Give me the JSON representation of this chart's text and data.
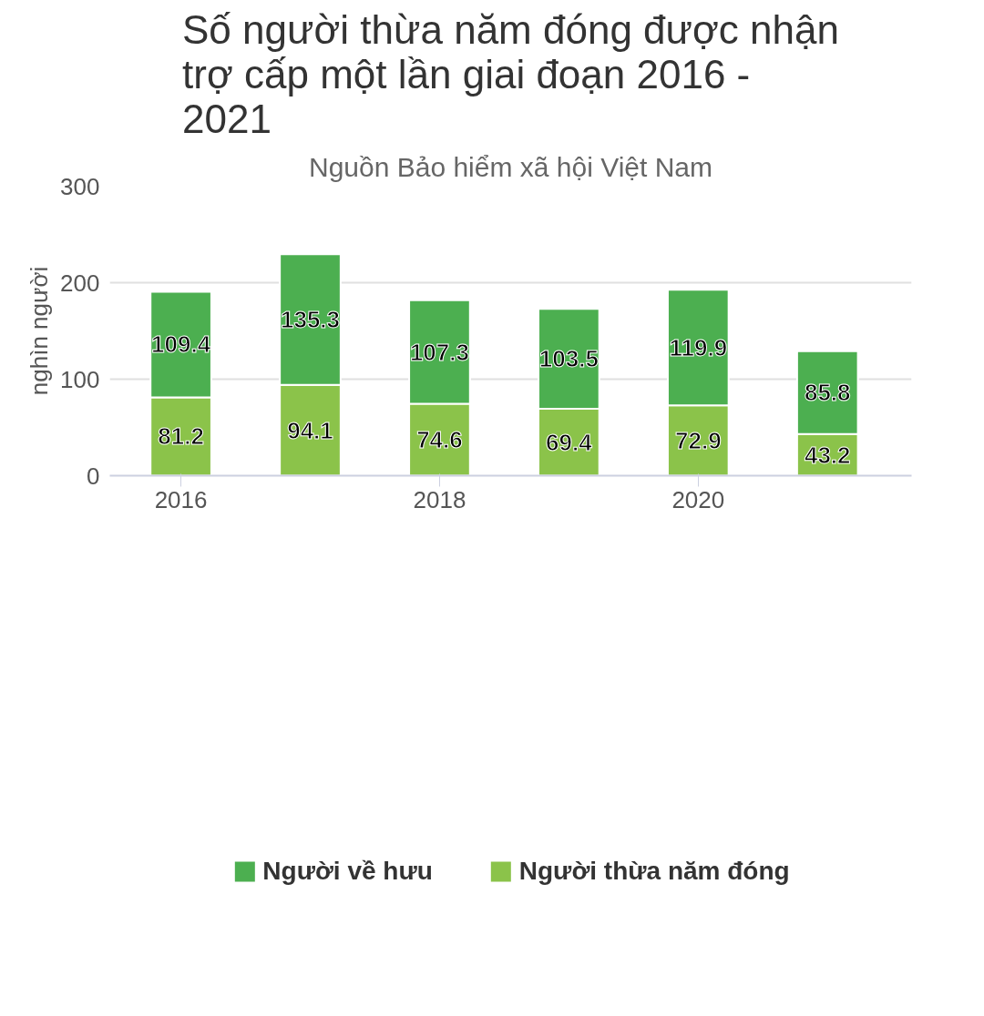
{
  "chart_data": {
    "type": "bar",
    "title": "Số người thừa năm đóng được nhận trợ cấp một lần giai đoạn 2016 - 2021",
    "subtitle": "Nguồn Bảo hiểm xã hội Việt Nam",
    "ylabel": "nghìn người",
    "x": [
      2016,
      2017,
      2018,
      2019,
      2020,
      2021
    ],
    "stacked": true,
    "data_labels": true,
    "series": [
      {
        "name": "Người thừa năm đóng",
        "color": "#8bc34a",
        "values": [
          81.2,
          94.1,
          74.6,
          69.4,
          72.9,
          43.2
        ]
      },
      {
        "name": "Người về hưu",
        "color": "#4caf50",
        "values": [
          109.4,
          135.3,
          107.3,
          103.5,
          119.9,
          85.8
        ]
      }
    ],
    "xlim": [
      2015.45,
      2021.65
    ],
    "xticks": [
      2016,
      2018,
      2020
    ],
    "ylim": [
      0,
      300
    ],
    "yticks": [
      0,
      100,
      200,
      300
    ],
    "grid": "y",
    "legend": "bottom"
  }
}
